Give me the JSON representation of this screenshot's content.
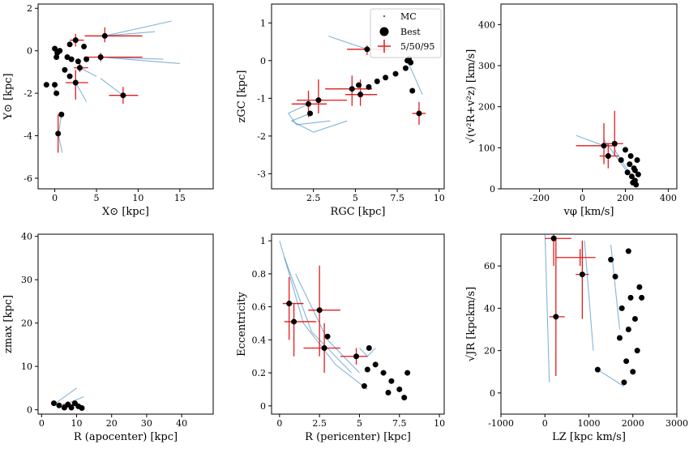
{
  "figure": {
    "legend": {
      "entries": [
        {
          "label": "MC",
          "marker": "small-dot",
          "color": "#1f77b4"
        },
        {
          "label": "Best",
          "marker": "big-dot",
          "color": "#000000"
        },
        {
          "label": "5/50/95",
          "marker": "cross",
          "color": "#e31a1c"
        }
      ],
      "placement": "upper-right of panel 2"
    }
  },
  "chart_data": [
    {
      "type": "scatter",
      "xlabel": "X⊙ [kpc]",
      "ylabel": "Y⊙ [kpc]",
      "xlim": [
        -2,
        19
      ],
      "ylim": [
        -6.5,
        2.2
      ],
      "xticks": [
        0,
        5,
        10,
        15
      ],
      "yticks": [
        -6,
        -4,
        -2,
        0,
        2
      ],
      "points": [
        {
          "x": 0.0,
          "y": 0.1
        },
        {
          "x": 0.3,
          "y": -0.1
        },
        {
          "x": 0.6,
          "y": 0.0
        },
        {
          "x": 0.2,
          "y": -0.3
        },
        {
          "x": 1.8,
          "y": 0.3
        },
        {
          "x": 2.5,
          "y": 0.5
        },
        {
          "x": 3.5,
          "y": 0.2
        },
        {
          "x": 6.0,
          "y": 0.7
        },
        {
          "x": 1.5,
          "y": -0.3
        },
        {
          "x": 2.0,
          "y": -0.4
        },
        {
          "x": 2.8,
          "y": -0.5
        },
        {
          "x": 3.8,
          "y": -0.4
        },
        {
          "x": 5.5,
          "y": -0.3
        },
        {
          "x": 3.0,
          "y": -0.8
        },
        {
          "x": 1.2,
          "y": -0.9
        },
        {
          "x": 1.8,
          "y": -1.2
        },
        {
          "x": 2.5,
          "y": -1.5
        },
        {
          "x": 0.0,
          "y": -1.6
        },
        {
          "x": -1.0,
          "y": -1.6
        },
        {
          "x": 0.2,
          "y": -2.0
        },
        {
          "x": 0.8,
          "y": -3.0
        },
        {
          "x": 0.4,
          "y": -3.9
        },
        {
          "x": 8.2,
          "y": -2.1
        }
      ],
      "errors": [
        {
          "x": 6.0,
          "y": 0.7,
          "x_lo": 3.6,
          "x_hi": 10.5,
          "y_lo": 0.4,
          "y_hi": 1.1
        },
        {
          "x": 5.5,
          "y": -0.3,
          "x_lo": 3.5,
          "x_hi": 10.5,
          "y_lo": -0.5,
          "y_hi": -0.1
        },
        {
          "x": 2.5,
          "y": -1.5,
          "x_lo": 1.3,
          "x_hi": 4.0,
          "y_lo": -2.3,
          "y_hi": -0.9
        },
        {
          "x": 8.2,
          "y": -2.1,
          "x_lo": 6.5,
          "x_hi": 10.0,
          "y_lo": -2.5,
          "y_hi": -1.7
        },
        {
          "x": 0.4,
          "y": -3.9,
          "x_lo": 0.2,
          "x_hi": 0.6,
          "y_lo": -4.8,
          "y_hi": -3.0
        },
        {
          "x": 3.0,
          "y": -0.8,
          "x_lo": 2.3,
          "x_hi": 4.0,
          "y_lo": -1.0,
          "y_hi": -0.6
        },
        {
          "x": 2.5,
          "y": 0.5,
          "x_lo": 1.8,
          "x_hi": 3.5,
          "y_lo": 0.2,
          "y_hi": 0.8
        }
      ],
      "clouds": [
        [
          [
            6.0,
            0.7
          ],
          [
            14.0,
            1.4
          ]
        ],
        [
          [
            6.0,
            0.7
          ],
          [
            12.0,
            0.9
          ]
        ],
        [
          [
            5.5,
            -0.3
          ],
          [
            15.0,
            -0.6
          ]
        ],
        [
          [
            5.5,
            -0.3
          ],
          [
            13.0,
            -0.4
          ]
        ],
        [
          [
            8.2,
            -2.1
          ],
          [
            5.5,
            -1.3
          ]
        ],
        [
          [
            2.5,
            -1.5
          ],
          [
            3.8,
            -2.4
          ]
        ],
        [
          [
            0.4,
            -3.9
          ],
          [
            0.9,
            -4.8
          ]
        ],
        [
          [
            0.8,
            -3.0
          ],
          [
            0.5,
            -3.8
          ]
        ],
        [
          [
            3.0,
            -0.8
          ],
          [
            5.0,
            -1.2
          ]
        ],
        [
          [
            0.2,
            -2.0
          ],
          [
            -0.2,
            -1.6
          ]
        ]
      ]
    },
    {
      "type": "scatter",
      "xlabel": "RGC [kpc]",
      "ylabel": "zGC [kpc]",
      "xlim": [
        0,
        10.3
      ],
      "ylim": [
        -3.4,
        1.5
      ],
      "xticks": [
        2.5,
        5.0,
        7.5,
        10.0
      ],
      "yticks": [
        -3,
        -2,
        -1,
        0,
        1
      ],
      "points": [
        {
          "x": 2.2,
          "y": -1.15
        },
        {
          "x": 2.3,
          "y": -1.4
        },
        {
          "x": 2.8,
          "y": -1.05
        },
        {
          "x": 4.8,
          "y": -0.75
        },
        {
          "x": 5.2,
          "y": -0.65
        },
        {
          "x": 5.3,
          "y": -0.9
        },
        {
          "x": 5.8,
          "y": -0.7
        },
        {
          "x": 6.3,
          "y": -0.55
        },
        {
          "x": 6.8,
          "y": -0.45
        },
        {
          "x": 7.4,
          "y": -0.35
        },
        {
          "x": 8.0,
          "y": -0.2
        },
        {
          "x": 8.1,
          "y": 0.0
        },
        {
          "x": 8.2,
          "y": 0.05
        },
        {
          "x": 8.3,
          "y": -0.05
        },
        {
          "x": 8.4,
          "y": -0.8
        },
        {
          "x": 8.8,
          "y": -1.4
        },
        {
          "x": 5.7,
          "y": 0.3
        }
      ],
      "errors": [
        {
          "x": 2.2,
          "y": -1.15,
          "x_lo": 1.2,
          "x_hi": 3.3,
          "y_lo": -1.5,
          "y_hi": -0.8
        },
        {
          "x": 2.8,
          "y": -1.05,
          "x_lo": 1.5,
          "x_hi": 4.5,
          "y_lo": -1.4,
          "y_hi": -0.5
        },
        {
          "x": 4.8,
          "y": -0.75,
          "x_lo": 3.2,
          "x_hi": 6.0,
          "y_lo": -1.2,
          "y_hi": -0.4
        },
        {
          "x": 5.3,
          "y": -0.9,
          "x_lo": 4.4,
          "x_hi": 6.3,
          "y_lo": -1.2,
          "y_hi": -0.5
        },
        {
          "x": 5.7,
          "y": 0.3,
          "x_lo": 4.5,
          "x_hi": 7.0,
          "y_lo": 0.15,
          "y_hi": 0.4
        },
        {
          "x": 8.8,
          "y": -1.4,
          "x_lo": 8.4,
          "x_hi": 9.2,
          "y_lo": -1.7,
          "y_hi": -1.1
        }
      ],
      "clouds": [
        [
          [
            2.3,
            -1.4
          ],
          [
            1.2,
            -1.6
          ],
          [
            2.5,
            -1.9
          ],
          [
            4.5,
            -1.6
          ]
        ],
        [
          [
            2.2,
            -1.15
          ],
          [
            1.0,
            -1.4
          ],
          [
            1.5,
            -1.7
          ],
          [
            3.5,
            -1.6
          ]
        ],
        [
          [
            5.7,
            0.3
          ],
          [
            3.4,
            0.65
          ]
        ],
        [
          [
            8.1,
            0.0
          ],
          [
            9.0,
            -0.9
          ]
        ]
      ]
    },
    {
      "type": "scatter",
      "xlabel": "vφ [km/s]",
      "ylabel": "√(v²R+v²z) [km/s]",
      "xlim": [
        -380,
        440
      ],
      "ylim": [
        0,
        450
      ],
      "xticks": [
        -200,
        0,
        200,
        400
      ],
      "yticks": [
        0,
        100,
        200,
        300,
        400
      ],
      "points": [
        {
          "x": 100,
          "y": 105
        },
        {
          "x": 120,
          "y": 80
        },
        {
          "x": 150,
          "y": 110
        },
        {
          "x": 180,
          "y": 70
        },
        {
          "x": 200,
          "y": 95
        },
        {
          "x": 210,
          "y": 40
        },
        {
          "x": 220,
          "y": 60
        },
        {
          "x": 230,
          "y": 30
        },
        {
          "x": 240,
          "y": 50
        },
        {
          "x": 245,
          "y": 20
        },
        {
          "x": 250,
          "y": 10
        },
        {
          "x": 255,
          "y": 70
        },
        {
          "x": 260,
          "y": 35
        },
        {
          "x": 225,
          "y": 80
        },
        {
          "x": 235,
          "y": 15
        },
        {
          "x": 245,
          "y": 45
        }
      ],
      "errors": [
        {
          "x": 100,
          "y": 105,
          "x_lo": -30,
          "x_hi": 160,
          "y_lo": 60,
          "y_hi": 160
        },
        {
          "x": 150,
          "y": 110,
          "x_lo": 110,
          "x_hi": 190,
          "y_lo": 80,
          "y_hi": 190
        },
        {
          "x": 120,
          "y": 80,
          "x_lo": 80,
          "x_hi": 170,
          "y_lo": 50,
          "y_hi": 110
        }
      ],
      "clouds": [
        [
          [
            100,
            105
          ],
          [
            -30,
            130
          ]
        ],
        [
          [
            210,
            40
          ],
          [
            100,
            120
          ]
        ],
        [
          [
            230,
            30
          ],
          [
            150,
            95
          ]
        ]
      ]
    },
    {
      "type": "scatter",
      "xlabel": "R (apocenter) [kpc]",
      "ylabel": "zmax [kpc]",
      "xlim": [
        -1,
        49
      ],
      "ylim": [
        -1,
        40.5
      ],
      "xticks": [
        0,
        10,
        20,
        30,
        40
      ],
      "yticks": [
        0,
        10,
        20,
        30,
        40
      ],
      "points": [
        {
          "x": 3.5,
          "y": 1.5
        },
        {
          "x": 5.0,
          "y": 1.0
        },
        {
          "x": 6.5,
          "y": 0.5
        },
        {
          "x": 7.5,
          "y": 1.2
        },
        {
          "x": 8.5,
          "y": 0.5
        },
        {
          "x": 9.5,
          "y": 1.5
        },
        {
          "x": 10.5,
          "y": 0.8
        },
        {
          "x": 11.5,
          "y": 0.4
        }
      ],
      "errors": [
        {
          "x": 7.5,
          "y": 1.2,
          "x_lo": 6.0,
          "x_hi": 9.0,
          "y_lo": 0.6,
          "y_hi": 2.0
        }
      ],
      "clouds": [
        [
          [
            4.0,
            1.5
          ],
          [
            10.0,
            5.0
          ]
        ],
        [
          [
            6.0,
            1.0
          ],
          [
            12.0,
            3.0
          ]
        ]
      ]
    },
    {
      "type": "scatter",
      "xlabel": "R (pericenter) [kpc]",
      "ylabel": "Eccentricity",
      "xlim": [
        -0.5,
        10.3
      ],
      "ylim": [
        -0.05,
        1.04
      ],
      "xticks": [
        0.0,
        2.5,
        5.0,
        7.5,
        10.0
      ],
      "yticks": [
        0.0,
        0.2,
        0.4,
        0.6,
        0.8,
        1.0
      ],
      "points": [
        {
          "x": 0.6,
          "y": 0.62
        },
        {
          "x": 0.9,
          "y": 0.51
        },
        {
          "x": 2.5,
          "y": 0.58
        },
        {
          "x": 2.8,
          "y": 0.35
        },
        {
          "x": 3.0,
          "y": 0.42
        },
        {
          "x": 4.8,
          "y": 0.3
        },
        {
          "x": 5.3,
          "y": 0.12
        },
        {
          "x": 5.6,
          "y": 0.35
        },
        {
          "x": 6.0,
          "y": 0.25
        },
        {
          "x": 6.5,
          "y": 0.2
        },
        {
          "x": 7.0,
          "y": 0.15
        },
        {
          "x": 7.5,
          "y": 0.1
        },
        {
          "x": 8.0,
          "y": 0.2
        },
        {
          "x": 5.5,
          "y": 0.22
        },
        {
          "x": 7.8,
          "y": 0.05
        },
        {
          "x": 6.8,
          "y": 0.08
        }
      ],
      "errors": [
        {
          "x": 0.6,
          "y": 0.62,
          "x_lo": 0.2,
          "x_hi": 1.5,
          "y_lo": 0.4,
          "y_hi": 0.78
        },
        {
          "x": 0.9,
          "y": 0.51,
          "x_lo": 0.3,
          "x_hi": 2.3,
          "y_lo": 0.3,
          "y_hi": 0.62
        },
        {
          "x": 2.5,
          "y": 0.58,
          "x_lo": 1.8,
          "x_hi": 3.8,
          "y_lo": 0.3,
          "y_hi": 0.85
        },
        {
          "x": 2.8,
          "y": 0.35,
          "x_lo": 1.5,
          "x_hi": 3.8,
          "y_lo": 0.2,
          "y_hi": 0.5
        },
        {
          "x": 4.8,
          "y": 0.3,
          "x_lo": 3.8,
          "x_hi": 5.5,
          "y_lo": 0.25,
          "y_hi": 0.35
        }
      ],
      "clouds": [
        [
          [
            0.0,
            1.0
          ],
          [
            1.5,
            0.5
          ],
          [
            3.5,
            0.25
          ],
          [
            5.5,
            0.1
          ]
        ],
        [
          [
            0.3,
            0.9
          ],
          [
            2.0,
            0.45
          ],
          [
            4.5,
            0.2
          ]
        ],
        [
          [
            1.0,
            0.8
          ],
          [
            3.0,
            0.4
          ],
          [
            5.0,
            0.2
          ]
        ],
        [
          [
            5.0,
            0.35
          ],
          [
            5.5,
            0.3
          ],
          [
            6.0,
            0.35
          ]
        ]
      ]
    },
    {
      "type": "scatter",
      "xlabel": "LZ [kpc km/s]",
      "ylabel": "√JR [kpckm/s]",
      "xlim": [
        -1000,
        3000
      ],
      "ylim": [
        -10,
        75
      ],
      "xticks": [
        -1000,
        0,
        1000,
        2000,
        3000
      ],
      "yticks": [
        0,
        20,
        40,
        60
      ],
      "points": [
        {
          "x": 200,
          "y": 73
        },
        {
          "x": 250,
          "y": 36
        },
        {
          "x": 850,
          "y": 56
        },
        {
          "x": 1200,
          "y": 11
        },
        {
          "x": 1500,
          "y": 63
        },
        {
          "x": 1600,
          "y": 55
        },
        {
          "x": 1700,
          "y": 26
        },
        {
          "x": 1800,
          "y": 5
        },
        {
          "x": 1850,
          "y": 15
        },
        {
          "x": 1900,
          "y": 30
        },
        {
          "x": 1950,
          "y": 45
        },
        {
          "x": 2000,
          "y": 10
        },
        {
          "x": 2050,
          "y": 35
        },
        {
          "x": 2100,
          "y": 20
        },
        {
          "x": 2150,
          "y": 50
        },
        {
          "x": 2200,
          "y": 45
        },
        {
          "x": 1900,
          "y": 67
        },
        {
          "x": 1750,
          "y": 40
        }
      ],
      "errors": [
        {
          "x": 200,
          "y": 73,
          "x_lo": 0,
          "x_hi": 600,
          "y_lo": 60,
          "y_hi": 76
        },
        {
          "x": 250,
          "y": 36,
          "x_lo": 100,
          "x_hi": 450,
          "y_lo": 8,
          "y_hi": 74
        },
        {
          "x": 850,
          "y": 56,
          "x_lo": 700,
          "x_hi": 1000,
          "y_lo": 35,
          "y_hi": 72
        },
        {
          "x": 800,
          "y": 64,
          "x_lo": 250,
          "x_hi": 1150,
          "y_lo": 60,
          "y_hi": 68
        }
      ],
      "clouds": [
        [
          [
            0,
            76
          ],
          [
            100,
            5
          ]
        ],
        [
          [
            900,
            72
          ],
          [
            1100,
            20
          ]
        ],
        [
          [
            1200,
            11
          ],
          [
            1800,
            3
          ]
        ],
        [
          [
            1500,
            70
          ],
          [
            1700,
            30
          ]
        ]
      ]
    }
  ]
}
